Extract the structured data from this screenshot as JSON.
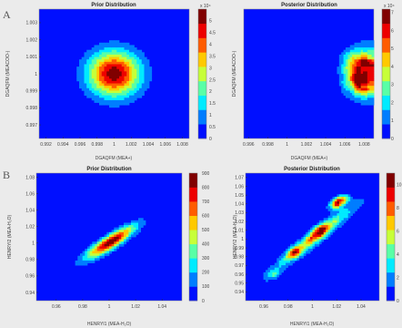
{
  "figure": {
    "panel_labels": [
      "A",
      "B"
    ]
  },
  "chart_data": [
    {
      "type": "heatmap",
      "title": "Prior Distribution",
      "xlabel": "DGAQFM (MEA+)",
      "ylabel": "DGAQFM (MEACOO-)",
      "xlim": [
        0.9912,
        1.0088
      ],
      "ylim": [
        0.9962,
        1.0038
      ],
      "xticks": [
        "0.992",
        "0.994",
        "0.996",
        "0.998",
        "1",
        "1.002",
        "1.004",
        "1.006",
        "1.008"
      ],
      "xtick_values": [
        0.992,
        0.994,
        0.996,
        0.998,
        1,
        1.002,
        1.004,
        1.006,
        1.008
      ],
      "yticks": [
        "0.997",
        "0.998",
        "0.999",
        "1",
        "1.001",
        "1.002",
        "1.003"
      ],
      "ytick_values": [
        0.997,
        0.998,
        0.999,
        1,
        1.001,
        1.002,
        1.003
      ],
      "colorbar": {
        "min": 0,
        "max": 5.5,
        "ticks": [
          "0",
          "0.5",
          "1",
          "1.5",
          "2",
          "2.5",
          "3",
          "3.5",
          "4",
          "4.5",
          "5"
        ],
        "tick_values": [
          0,
          0.5,
          1,
          1.5,
          2,
          2.5,
          3,
          3.5,
          4,
          4.5,
          5
        ],
        "exponent": "x 10⁴"
      },
      "blobs": [
        {
          "cx": 1.0,
          "cy": 1.0,
          "sx": 0.0021,
          "sy": 0.00092,
          "rho": 0.0,
          "amp": 5.3
        }
      ],
      "noise": 0.0
    },
    {
      "type": "heatmap",
      "title": "Posterior Distribution",
      "xlabel": "DGAQFM (MEA+)",
      "ylabel": "DGAQFM (MEACOO-)",
      "xlim": [
        0.9955,
        1.009
      ],
      "ylim": [
        0.9962,
        1.0038
      ],
      "xticks": [
        "0.996",
        "0.998",
        "1",
        "1.002",
        "1.004",
        "1.006",
        "1.008"
      ],
      "xtick_values": [
        0.996,
        0.998,
        1,
        1.002,
        1.004,
        1.006,
        1.008
      ],
      "yticks": [],
      "ytick_values": [],
      "colorbar": {
        "min": 0,
        "max": 7.2,
        "ticks": [
          "0",
          "1",
          "2",
          "3",
          "4",
          "5",
          "6",
          "7"
        ],
        "tick_values": [
          0,
          1,
          2,
          3,
          4,
          5,
          6,
          7
        ],
        "exponent": "x 10⁴"
      },
      "blobs": [
        {
          "cx": 1.0092,
          "cy": 1.0,
          "sx": 0.0019,
          "sy": 0.0009,
          "rho": 0.0,
          "amp": 7.0
        },
        {
          "cx": 1.0075,
          "cy": 0.9995,
          "sx": 0.0008,
          "sy": 0.0004,
          "rho": 0.0,
          "amp": 3.0
        },
        {
          "cx": 1.0072,
          "cy": 1.0008,
          "sx": 0.0009,
          "sy": 0.0005,
          "rho": 0.0,
          "amp": 2.5
        }
      ],
      "noise": 0.22
    },
    {
      "type": "heatmap",
      "title": "Prior Distribution",
      "xlabel": "HENRYI1 (MEA-H₂O)",
      "ylabel": "HENRYI2 (MEA-H₂O)",
      "xlim": [
        0.945,
        1.055
      ],
      "ylim": [
        0.93,
        1.085
      ],
      "xticks": [
        "0.96",
        "0.98",
        "1",
        "1.02",
        "1.04"
      ],
      "xtick_values": [
        0.96,
        0.98,
        1,
        1.02,
        1.04
      ],
      "yticks": [
        "0.94",
        "0.96",
        "0.98",
        "1",
        "1.02",
        "1.04",
        "1.06",
        "1.08"
      ],
      "ytick_values": [
        0.94,
        0.96,
        0.98,
        1,
        1.02,
        1.04,
        1.06,
        1.08
      ],
      "colorbar": {
        "min": 0,
        "max": 900,
        "ticks": [
          "0",
          "100",
          "200",
          "300",
          "400",
          "500",
          "600",
          "700",
          "800",
          "900"
        ],
        "tick_values": [
          0,
          100,
          200,
          300,
          400,
          500,
          600,
          700,
          800,
          900
        ],
        "exponent": ""
      },
      "blobs": [
        {
          "cx": 1.001,
          "cy": 1.001,
          "sx": 0.0125,
          "sy": 0.0135,
          "rho": 0.88,
          "amp": 880
        }
      ],
      "noise": 0.0
    },
    {
      "type": "heatmap",
      "title": "Posterior Distribution",
      "xlabel": "HENRYI1 (MEA-H₂O)",
      "ylabel": "HENRYI2 (MEA-H₂O)",
      "xlim": [
        0.945,
        1.055
      ],
      "ylim": [
        0.93,
        1.075
      ],
      "xticks": [
        "0.96",
        "0.98",
        "1",
        "1.02",
        "1.04"
      ],
      "xtick_values": [
        0.96,
        0.98,
        1,
        1.02,
        1.04
      ],
      "yticks": [
        "0.94",
        "0.95",
        "0.96",
        "0.97",
        "0.98",
        "0.99",
        "1",
        "1.01",
        "1.02",
        "1.03",
        "1.04",
        "1.05",
        "1.06",
        "1.07"
      ],
      "ytick_values": [
        0.94,
        0.95,
        0.96,
        0.97,
        0.98,
        0.99,
        1,
        1.01,
        1.02,
        1.03,
        1.04,
        1.05,
        1.06,
        1.07
      ],
      "colorbar": {
        "min": 0,
        "max": 11,
        "ticks": [
          "0",
          "2",
          "4",
          "6",
          "8",
          "10"
        ],
        "tick_values": [
          0,
          2,
          4,
          6,
          8,
          10
        ],
        "exponent": ""
      },
      "blobs": [
        {
          "cx": 1.002,
          "cy": 1.002,
          "sx": 0.022,
          "sy": 0.024,
          "rho": 0.96,
          "amp": 6
        },
        {
          "cx": 1.022,
          "cy": 1.042,
          "sx": 0.005,
          "sy": 0.005,
          "rho": 0.5,
          "amp": 10
        },
        {
          "cx": 1.005,
          "cy": 1.008,
          "sx": 0.005,
          "sy": 0.006,
          "rho": 0.6,
          "amp": 6
        },
        {
          "cx": 0.985,
          "cy": 0.985,
          "sx": 0.004,
          "sy": 0.005,
          "rho": 0.5,
          "amp": 5
        },
        {
          "cx": 0.968,
          "cy": 0.96,
          "sx": 0.004,
          "sy": 0.004,
          "rho": 0.5,
          "amp": 3
        }
      ],
      "noise": 0.12
    }
  ]
}
